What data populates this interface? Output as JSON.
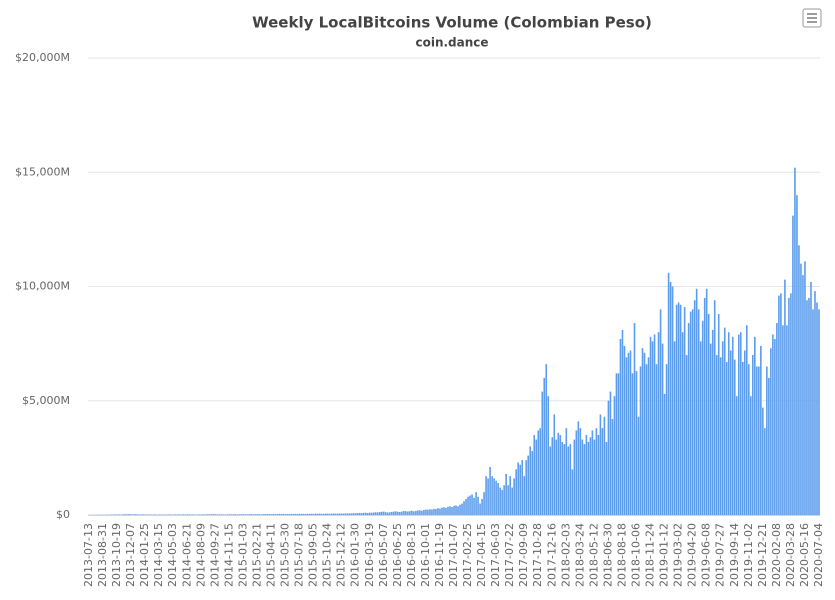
{
  "chart_data": {
    "type": "bar",
    "title": "Weekly LocalBitcoins Volume (Colombian Peso)",
    "subtitle": "coin.dance",
    "categories": [
      "2013-07-13",
      null,
      null,
      null,
      null,
      null,
      null,
      "2013-08-31",
      null,
      null,
      null,
      null,
      null,
      null,
      "2013-10-19",
      null,
      null,
      null,
      null,
      null,
      null,
      "2013-12-07",
      null,
      null,
      null,
      null,
      null,
      null,
      "2014-01-25",
      null,
      null,
      null,
      null,
      null,
      null,
      "2014-03-15",
      null,
      null,
      null,
      null,
      null,
      null,
      "2014-05-03",
      null,
      null,
      null,
      null,
      null,
      null,
      "2014-06-21",
      null,
      null,
      null,
      null,
      null,
      null,
      "2014-08-09",
      null,
      null,
      null,
      null,
      null,
      null,
      "2014-09-27",
      null,
      null,
      null,
      null,
      null,
      null,
      "2014-11-15",
      null,
      null,
      null,
      null,
      null,
      null,
      "2015-01-03",
      null,
      null,
      null,
      null,
      null,
      null,
      "2015-02-21",
      null,
      null,
      null,
      null,
      null,
      null,
      "2015-04-11",
      null,
      null,
      null,
      null,
      null,
      null,
      "2015-05-30",
      null,
      null,
      null,
      null,
      null,
      null,
      "2015-07-18",
      null,
      null,
      null,
      null,
      null,
      null,
      "2015-09-05",
      null,
      null,
      null,
      null,
      null,
      null,
      "2015-10-24",
      null,
      null,
      null,
      null,
      null,
      null,
      "2015-12-12",
      null,
      null,
      null,
      null,
      null,
      null,
      "2016-01-30",
      null,
      null,
      null,
      null,
      null,
      null,
      "2016-03-19",
      null,
      null,
      null,
      null,
      null,
      null,
      "2016-05-07",
      null,
      null,
      null,
      null,
      null,
      null,
      "2016-06-25",
      null,
      null,
      null,
      null,
      null,
      null,
      "2016-08-13",
      null,
      null,
      null,
      null,
      null,
      null,
      "2016-10-01",
      null,
      null,
      null,
      null,
      null,
      null,
      "2016-11-19",
      null,
      null,
      null,
      null,
      null,
      null,
      "2017-01-07",
      null,
      null,
      null,
      null,
      null,
      null,
      "2017-02-25",
      null,
      null,
      null,
      null,
      null,
      null,
      "2017-04-15",
      null,
      null,
      null,
      null,
      null,
      null,
      "2017-06-03",
      null,
      null,
      null,
      null,
      null,
      null,
      "2017-07-22",
      null,
      null,
      null,
      null,
      null,
      null,
      "2017-09-09",
      null,
      null,
      null,
      null,
      null,
      null,
      "2017-10-28",
      null,
      null,
      null,
      null,
      null,
      null,
      "2017-12-16",
      null,
      null,
      null,
      null,
      null,
      null,
      "2018-02-03",
      null,
      null,
      null,
      null,
      null,
      null,
      "2018-03-24",
      null,
      null,
      null,
      null,
      null,
      null,
      "2018-05-12",
      null,
      null,
      null,
      null,
      null,
      null,
      "2018-06-30",
      null,
      null,
      null,
      null,
      null,
      null,
      "2018-08-18",
      null,
      null,
      null,
      null,
      null,
      null,
      "2018-10-06",
      null,
      null,
      null,
      null,
      null,
      null,
      "2018-11-24",
      null,
      null,
      null,
      null,
      null,
      null,
      "2019-01-12",
      null,
      null,
      null,
      null,
      null,
      null,
      "2019-03-02",
      null,
      null,
      null,
      null,
      null,
      null,
      "2019-04-20",
      null,
      null,
      null,
      null,
      null,
      null,
      "2019-06-08",
      null,
      null,
      null,
      null,
      null,
      null,
      "2019-07-27",
      null,
      null,
      null,
      null,
      null,
      null,
      "2019-09-14",
      null,
      null,
      null,
      null,
      null,
      null,
      "2019-11-02",
      null,
      null,
      null,
      null,
      null,
      null,
      "2019-12-21",
      null,
      null,
      null,
      null,
      null,
      null,
      "2020-02-08",
      null,
      null,
      null,
      null,
      null,
      null,
      "2020-03-28",
      null,
      null,
      null,
      null,
      null,
      null,
      "2020-05-16",
      null,
      null,
      null,
      null,
      null,
      null,
      "2020-07-04"
    ],
    "values": [
      5,
      8,
      6,
      12,
      10,
      15,
      9,
      14,
      11,
      18,
      13,
      20,
      16,
      22,
      18,
      25,
      20,
      28,
      35,
      30,
      40,
      32,
      28,
      35,
      30,
      26,
      22,
      30,
      25,
      20,
      18,
      22,
      20,
      25,
      15,
      18,
      20,
      22,
      17,
      19,
      24,
      20,
      18,
      26,
      22,
      25,
      20,
      28,
      24,
      30,
      26,
      22,
      25,
      20,
      18,
      24,
      22,
      30,
      26,
      28,
      35,
      30,
      40,
      32,
      28,
      25,
      30,
      26,
      22,
      28,
      32,
      28,
      30,
      34,
      26,
      30,
      36,
      32,
      28,
      30,
      34,
      38,
      30,
      36,
      40,
      35,
      30,
      38,
      42,
      36,
      40,
      38,
      44,
      36,
      42,
      48,
      40,
      45,
      38,
      42,
      46,
      40,
      44,
      50,
      42,
      48,
      45,
      52,
      46,
      50,
      48,
      55,
      50,
      58,
      52,
      60,
      55,
      50,
      62,
      58,
      55,
      60,
      65,
      58,
      62,
      68,
      60,
      65,
      70,
      66,
      72,
      68,
      80,
      75,
      85,
      90,
      82,
      95,
      100,
      88,
      105,
      98,
      110,
      120,
      115,
      130,
      140,
      150,
      125,
      110,
      120,
      135,
      150,
      160,
      140,
      130,
      150,
      175,
      165,
      155,
      170,
      190,
      160,
      180,
      200,
      210,
      185,
      220,
      240,
      230,
      250,
      240,
      270,
      260,
      300,
      280,
      320,
      340,
      310,
      360,
      380,
      350,
      400,
      420,
      380,
      450,
      500,
      600,
      700,
      800,
      850,
      900,
      750,
      1000,
      800,
      500,
      700,
      1000,
      1700,
      1600,
      2100,
      1700,
      1600,
      1500,
      1400,
      1200,
      1100,
      1300,
      1800,
      1300,
      1700,
      1200,
      1600,
      2000,
      2300,
      2200,
      2400,
      1700,
      2400,
      2600,
      3000,
      2800,
      3500,
      3300,
      3700,
      3800,
      5400,
      6000,
      6600,
      5200,
      3000,
      3400,
      4400,
      3300,
      3600,
      3500,
      3200,
      3100,
      3800,
      3000,
      3100,
      2000,
      3300,
      3700,
      4100,
      3800,
      3300,
      3100,
      3500,
      3200,
      3400,
      3700,
      3300,
      3800,
      3500,
      4400,
      3800,
      4300,
      3200,
      5000,
      5400,
      4200,
      5200,
      6200,
      6200,
      7700,
      8100,
      7400,
      6900,
      7100,
      7200,
      6200,
      8400,
      6300,
      4300,
      6500,
      7300,
      7100,
      6600,
      6900,
      7800,
      7600,
      7900,
      6600,
      8000,
      9000,
      7500,
      5300,
      6600,
      10600,
      10200,
      10000,
      7600,
      9200,
      9300,
      9200,
      8000,
      9100,
      7000,
      8400,
      8900,
      9000,
      9400,
      9900,
      9000,
      7600,
      8500,
      9500,
      9900,
      8800,
      7500,
      8100,
      9400,
      7000,
      8800,
      6900,
      7600,
      8200,
      6700,
      8000,
      7200,
      7800,
      6800,
      5200,
      7900,
      8000,
      6700,
      7200,
      8300,
      6600,
      5200,
      7000,
      7800,
      6500,
      6500,
      7400,
      4700,
      3800,
      6500,
      6000,
      7300,
      7900,
      7700,
      8400,
      9600,
      9700,
      8300,
      10300,
      8300,
      9500,
      9700,
      13100,
      15200,
      14000,
      11800,
      11000,
      10500,
      11100,
      9400,
      9500,
      10200,
      9000,
      9800,
      9300,
      9000
    ],
    "color": "#5c9ded",
    "ylim": [
      0,
      20000
    ],
    "yticks": [
      {
        "value": 0,
        "label": "$0"
      },
      {
        "value": 5000,
        "label": "$5,000M"
      },
      {
        "value": 10000,
        "label": "$10,000M"
      },
      {
        "value": 15000,
        "label": "$15,000M"
      },
      {
        "value": 20000,
        "label": "$20,000M"
      }
    ],
    "grid": true
  }
}
